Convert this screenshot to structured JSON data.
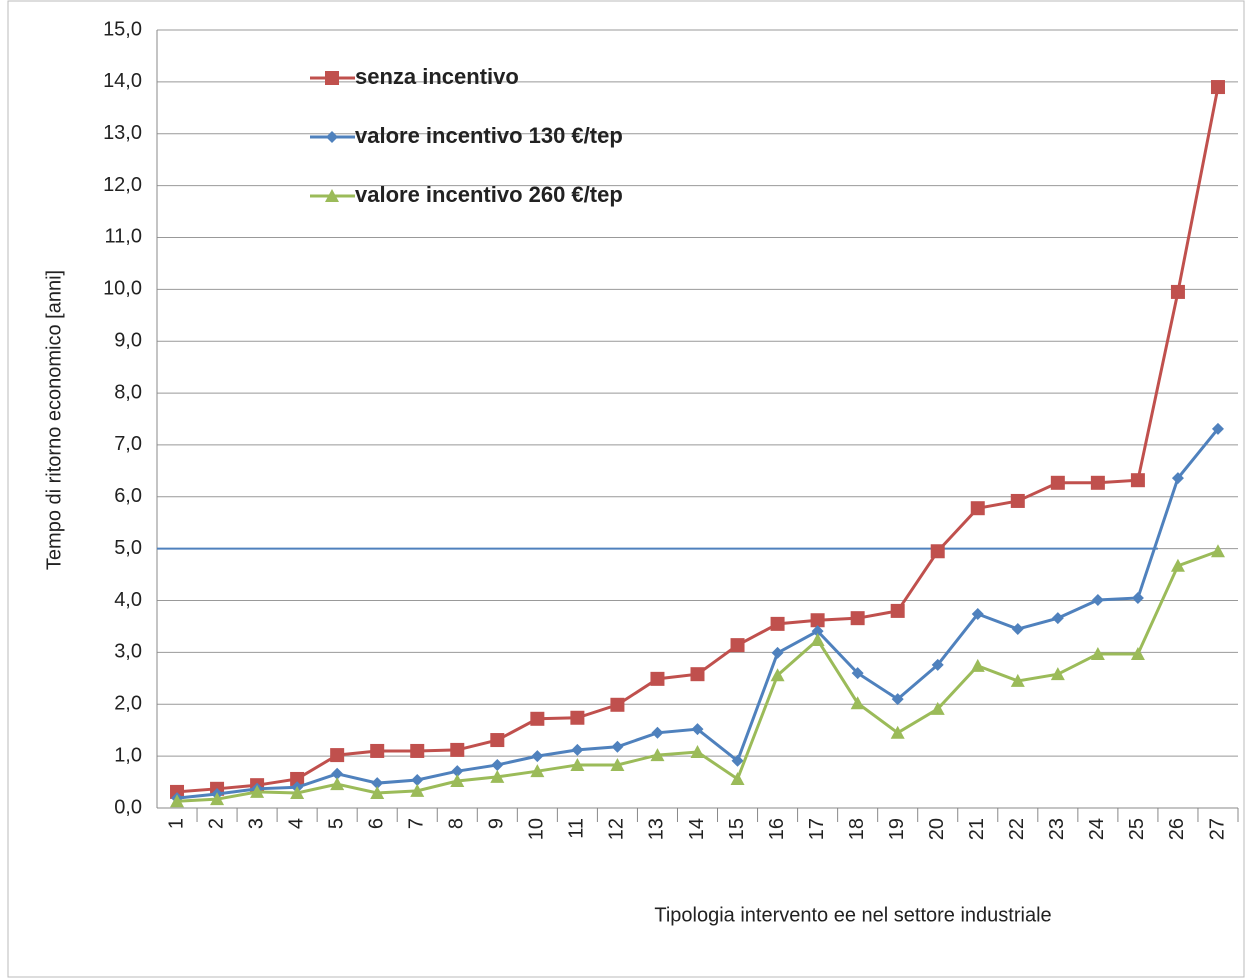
{
  "chart_data": {
    "type": "line",
    "y_label": "Tempo di ritorno economico [anni]",
    "x_label": "Tipologia intervento ee nel settore industriale",
    "categories": [
      "1",
      "2",
      "3",
      "4",
      "5",
      "6",
      "7",
      "8",
      "9",
      "10",
      "11",
      "12",
      "13",
      "14",
      "15",
      "16",
      "17",
      "18",
      "19",
      "20",
      "21",
      "22",
      "23",
      "24",
      "25",
      "26",
      "27"
    ],
    "series": [
      {
        "name": "senza incentivo",
        "color": "#c0504d",
        "marker": "square",
        "values": [
          0.31,
          0.37,
          0.44,
          0.56,
          1.02,
          1.1,
          1.1,
          1.12,
          1.31,
          1.72,
          1.74,
          1.99,
          2.49,
          2.58,
          3.14,
          3.55,
          3.62,
          3.66,
          3.8,
          4.95,
          5.78,
          5.92,
          6.27,
          6.27,
          6.32,
          9.95,
          13.9
        ]
      },
      {
        "name": "valore incentivo 130 €/tep",
        "color": "#4f81bd",
        "marker": "diamond",
        "values": [
          0.19,
          0.27,
          0.37,
          0.4,
          0.66,
          0.48,
          0.54,
          0.71,
          0.83,
          1.0,
          1.12,
          1.18,
          1.45,
          1.52,
          0.91,
          2.99,
          3.41,
          2.6,
          2.1,
          2.76,
          3.74,
          3.45,
          3.66,
          4.01,
          4.05,
          6.36,
          7.31
        ]
      },
      {
        "name": "valore incentivo 260 €/tep",
        "color": "#9bbb59",
        "marker": "triangle",
        "values": [
          0.13,
          0.17,
          0.31,
          0.29,
          0.46,
          0.29,
          0.33,
          0.52,
          0.6,
          0.71,
          0.83,
          0.83,
          1.02,
          1.08,
          0.56,
          2.56,
          3.24,
          2.02,
          1.45,
          1.91,
          2.74,
          2.45,
          2.58,
          2.97,
          2.97,
          4.67,
          4.95
        ]
      }
    ],
    "reference_line": {
      "value": 5,
      "color": "#4f81bd"
    },
    "ylim": [
      0,
      15
    ],
    "yticks": [
      {
        "value": 0,
        "label": "0,0"
      },
      {
        "value": 1,
        "label": "1,0"
      },
      {
        "value": 2,
        "label": "2,0"
      },
      {
        "value": 3,
        "label": "3,0"
      },
      {
        "value": 4,
        "label": "4,0"
      },
      {
        "value": 5,
        "label": "5,0"
      },
      {
        "value": 6,
        "label": "6,0"
      },
      {
        "value": 7,
        "label": "7,0"
      },
      {
        "value": 8,
        "label": "8,0"
      },
      {
        "value": 9,
        "label": "9,0"
      },
      {
        "value": 10,
        "label": "10,0"
      },
      {
        "value": 11,
        "label": "11,0"
      },
      {
        "value": 12,
        "label": "12,0"
      },
      {
        "value": 13,
        "label": "13,0"
      },
      {
        "value": 14,
        "label": "14,0"
      },
      {
        "value": 15,
        "label": "15,0"
      }
    ],
    "grid": true,
    "legend": "upper left"
  }
}
